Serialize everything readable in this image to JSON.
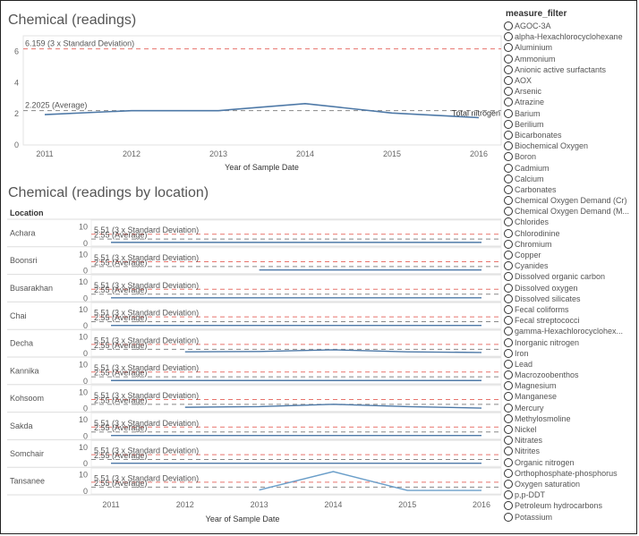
{
  "top_chart": {
    "title": "Chemical (readings)",
    "xlabel": "Year of Sample Date",
    "series_label": "Total nitrogen"
  },
  "loc_chart": {
    "title": "Chemical (readings by location)",
    "header": "Location",
    "xlabel": "Year of Sample Date"
  },
  "filter": {
    "title": "measure_filter",
    "options": [
      "AGOC-3A",
      "alpha-Hexachlorocyclohexane",
      "Aluminium",
      "Ammonium",
      "Anionic active surfactants",
      "AOX",
      "Arsenic",
      "Atrazine",
      "Barium",
      "Berilium",
      "Bicarbonates",
      "Biochemical Oxygen",
      "Boron",
      "Cadmium",
      "Calcium",
      "Carbonates",
      "Chemical Oxygen Demand (Cr)",
      "Chemical Oxygen Demand (M...",
      "Chlorides",
      "Chlorodinine",
      "Chromium",
      "Copper",
      "Cyanides",
      "Dissolved organic carbon",
      "Dissolved oxygen",
      "Dissolved silicates",
      "Fecal coliforms",
      "Fecal streptococci",
      "gamma-Hexachlorocyclohex...",
      "Inorganic nitrogen",
      "Iron",
      "Lead",
      "Macrozoobenthos",
      "Magnesium",
      "Manganese",
      "Mercury",
      "Methylosmoline",
      "Nickel",
      "Nitrates",
      "Nitrites",
      "Organic nitrogen",
      "Orthophosphate-phosphorus",
      "Oxygen saturation",
      "p,p-DDT",
      "Petroleum hydrocarbons",
      "Potassium"
    ]
  },
  "chart_data": [
    {
      "type": "line",
      "title": "Chemical (readings)",
      "xlabel": "Year of Sample Date",
      "ylabel": "",
      "x": [
        2011,
        2012,
        2013,
        2014,
        2015,
        2016
      ],
      "x_ticks": [
        "2011",
        "2012",
        "2013",
        "2014",
        "2015",
        "2016"
      ],
      "y_ticks": [
        "0",
        "2",
        "4",
        "6"
      ],
      "ylim": [
        0,
        7
      ],
      "series": [
        {
          "name": "Total nitrogen",
          "values": [
            1.95,
            2.2,
            2.2,
            2.65,
            2.05,
            1.75
          ]
        }
      ],
      "reference_lines": [
        {
          "label": "6.159 (3 x Standard Deviation)",
          "value": 6.159,
          "color": "#e8736c"
        },
        {
          "label": "2.2025 (Average)",
          "value": 2.2025,
          "color": "#888888"
        }
      ]
    },
    {
      "type": "line",
      "title": "Chemical (readings by location)",
      "xlabel": "Year of Sample Date",
      "x_ticks": [
        "2011",
        "2012",
        "2013",
        "2014",
        "2015",
        "2016"
      ],
      "y_ticks": [
        "0",
        "10"
      ],
      "ylim": [
        0,
        13
      ],
      "reference_lines": [
        {
          "label": "5.51 (3 x Standard Deviation)",
          "value": 5.51,
          "color": "#e8736c"
        },
        {
          "label": "2.55 (Average)",
          "value": 2.55,
          "color": "#888888"
        }
      ],
      "rows": [
        {
          "location": "Achara",
          "x": [
            2011,
            2016
          ],
          "values": [
            0.5,
            0.5
          ]
        },
        {
          "location": "Boonsri",
          "x": [
            2013,
            2016
          ],
          "values": [
            0.5,
            0.5
          ]
        },
        {
          "location": "Busarakhan",
          "x": [
            2011,
            2016
          ],
          "values": [
            0.3,
            0.3
          ]
        },
        {
          "location": "Chai",
          "x": [
            2011,
            2016
          ],
          "values": [
            0.3,
            0.3
          ]
        },
        {
          "location": "Decha",
          "x": [
            2012,
            2013,
            2014,
            2015,
            2016
          ],
          "values": [
            1.0,
            1.2,
            2.2,
            1.0,
            0.6
          ]
        },
        {
          "location": "Kannika",
          "x": [
            2011,
            2016
          ],
          "values": [
            0.3,
            0.3
          ]
        },
        {
          "location": "Kohsoom",
          "x": [
            2012,
            2013,
            2014,
            2015,
            2016
          ],
          "values": [
            0.8,
            1.2,
            2.6,
            1.2,
            0.3
          ]
        },
        {
          "location": "Sakda",
          "x": [
            2011,
            2016
          ],
          "values": [
            0.4,
            0.4
          ]
        },
        {
          "location": "Somchair",
          "x": [
            2011,
            2016
          ],
          "values": [
            0.3,
            0.3
          ]
        },
        {
          "location": "Tansanee",
          "x": [
            2013,
            2014,
            2015,
            2016
          ],
          "values": [
            0.8,
            12.0,
            0.5,
            0.5
          ]
        }
      ]
    }
  ]
}
